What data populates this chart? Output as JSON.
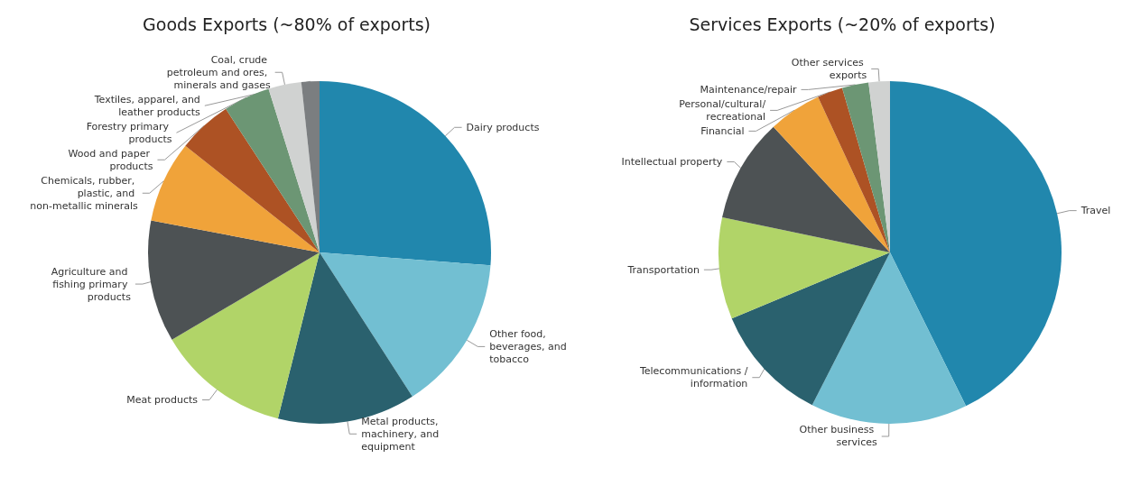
{
  "chart_data": [
    {
      "type": "pie",
      "title": "Goods Exports (~80% of exports)",
      "categories": [
        "Dairy products",
        "Other food, beverages, and tobacco",
        "Metal products, machinery, and equipment",
        "Meat products",
        "Agriculture and fishing primary products",
        "Chemicals, rubber, plastic, and non-metallic minerals",
        "Wood and paper products",
        "Forestry primary products",
        "Coal, crude petroleum and ores, minerals and gases",
        "Textiles, apparel, and leather products"
      ],
      "values": [
        26.2,
        14.7,
        13,
        12.6,
        11.5,
        7.7,
        5.1,
        4.4,
        3.1,
        1.7
      ],
      "colors": [
        "#2187ad",
        "#72bfd2",
        "#2a616e",
        "#b1d468",
        "#4d5254",
        "#f0a33a",
        "#ad5224",
        "#6c9674",
        "#d0d2d1",
        "#7b7e80"
      ]
    },
    {
      "type": "pie",
      "title": "Services Exports (~20% of exports)",
      "categories": [
        "Travel",
        "Other business services",
        "Telecommunications /information",
        "Transportation",
        "Intellectual property",
        "Financial",
        "Personal/cultural/recreational",
        "Maintenance/repair",
        "Other services exports"
      ],
      "values": [
        42.7,
        14.8,
        11.2,
        9.6,
        9.8,
        5,
        2.4,
        2.5,
        2
      ],
      "colors": [
        "#2187ad",
        "#72bfd2",
        "#2a616e",
        "#b1d468",
        "#4d5254",
        "#f0a33a",
        "#ad5224",
        "#6c9674",
        "#d0d2d1"
      ]
    }
  ]
}
